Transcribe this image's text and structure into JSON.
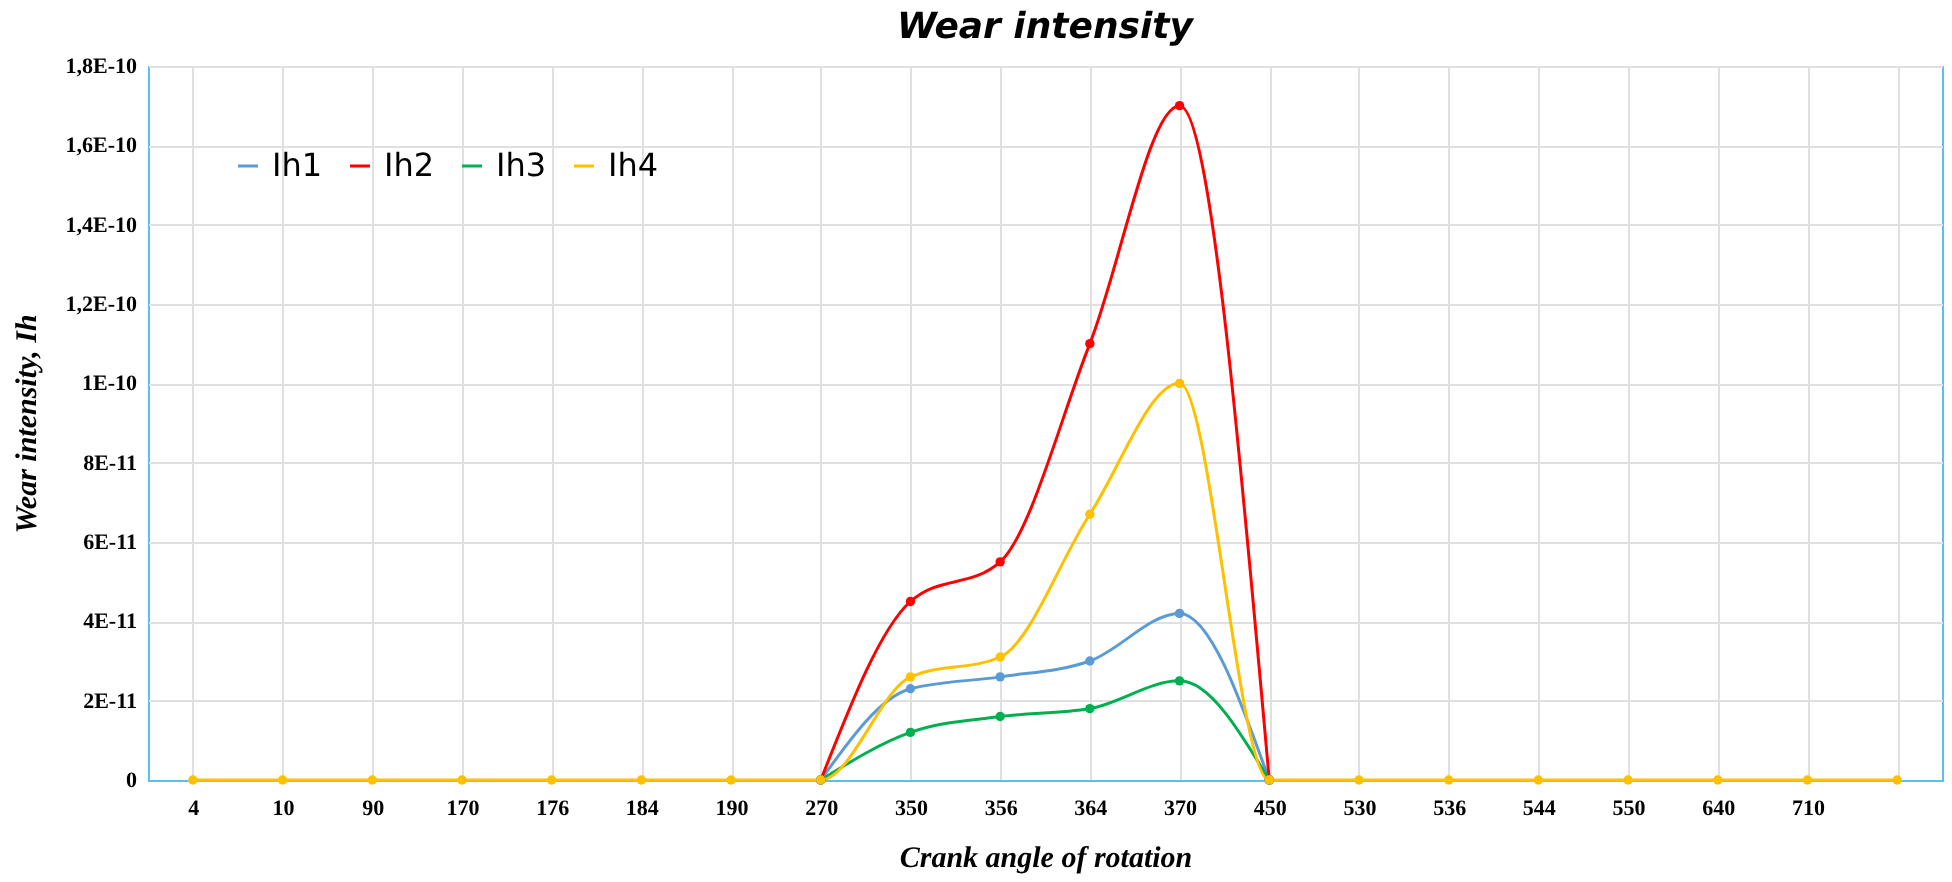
{
  "chart_data": {
    "type": "line",
    "title": "Wear intensity",
    "xlabel": "Crank angle of rotation",
    "ylabel": "Wear intensity, Ih",
    "categories": [
      "4",
      "10",
      "90",
      "170",
      "176",
      "184",
      "190",
      "270",
      "350",
      "356",
      "364",
      "370",
      "450",
      "530",
      "536",
      "544",
      "550",
      "640",
      "710",
      null
    ],
    "series": [
      {
        "name": "Ih1",
        "color": "#5b9bd5",
        "values": [
          null,
          null,
          null,
          null,
          null,
          null,
          null,
          0,
          2.3e-11,
          2.6e-11,
          3e-11,
          4.2e-11,
          0,
          null,
          null,
          null,
          null,
          null,
          null,
          null
        ]
      },
      {
        "name": "Ih2",
        "color": "#ff0000",
        "values": [
          null,
          null,
          null,
          null,
          null,
          null,
          null,
          0,
          4.5e-11,
          5.5e-11,
          1.1e-10,
          1.7e-10,
          0,
          null,
          null,
          null,
          null,
          null,
          null,
          null
        ]
      },
      {
        "name": "Ih3",
        "color": "#00b050",
        "values": [
          null,
          null,
          null,
          null,
          null,
          null,
          null,
          0,
          1.2e-11,
          1.6e-11,
          1.8e-11,
          2.5e-11,
          0,
          null,
          null,
          null,
          null,
          null,
          null,
          null
        ]
      },
      {
        "name": "Ih4",
        "color": "#ffc000",
        "values": [
          0,
          0,
          0,
          0,
          0,
          0,
          0,
          0,
          2.6e-11,
          3.1e-11,
          6.7e-11,
          1e-10,
          0,
          0,
          0,
          0,
          0,
          0,
          0,
          0
        ]
      }
    ],
    "ylim": [
      0,
      1.8e-10
    ],
    "yticks": [
      {
        "value": 0,
        "label": "0"
      },
      {
        "value": 2e-11,
        "label": "2E-11"
      },
      {
        "value": 4e-11,
        "label": "4E-11"
      },
      {
        "value": 6e-11,
        "label": "6E-11"
      },
      {
        "value": 8e-11,
        "label": "8E-11"
      },
      {
        "value": 1e-10,
        "label": "1E-10"
      },
      {
        "value": 1.2e-10,
        "label": "1,2E-10"
      },
      {
        "value": 1.4e-10,
        "label": "1,4E-10"
      },
      {
        "value": 1.6e-10,
        "label": "1,6E-10"
      },
      {
        "value": 1.8e-10,
        "label": "1,8E-10"
      }
    ],
    "grid": true,
    "legend": "top left",
    "marker": "circle",
    "line_style": "solid"
  }
}
